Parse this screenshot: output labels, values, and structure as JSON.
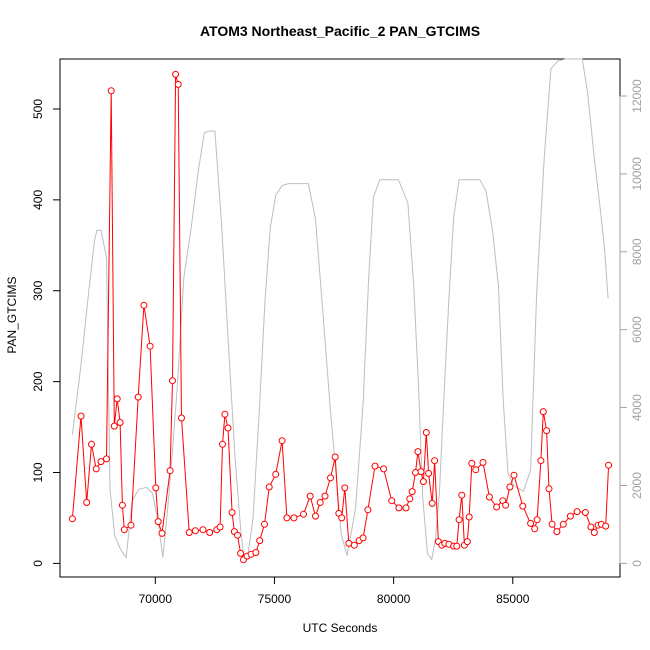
{
  "chart_data": {
    "type": "line",
    "title": "ATOM3 Northeast_Pacific_2 PAN_GTCIMS",
    "xlabel": "UTC Seconds",
    "ylabel": "PAN_GTCIMS",
    "xlim": [
      66000,
      89500
    ],
    "ylim": [
      -15,
      555
    ],
    "y2lim": [
      -350,
      12950
    ],
    "x_ticks": [
      70000,
      75000,
      80000,
      85000
    ],
    "y_ticks": [
      0,
      100,
      200,
      300,
      400,
      500
    ],
    "y2_ticks": [
      0,
      2000,
      4000,
      6000,
      8000,
      10000,
      12000
    ],
    "colors": {
      "primary": "#ff0000",
      "secondary": "#bebebe",
      "axis": "#000000",
      "right_axis": "#a0a0a0"
    },
    "grid": false,
    "series": [
      {
        "axis": "left",
        "style": "line+points",
        "x": [
          66520,
          66880,
          67120,
          67320,
          67520,
          67720,
          67950,
          68150,
          68280,
          68400,
          68520,
          68620,
          68700,
          68980,
          69280,
          69520,
          69780,
          70020,
          70120,
          70280,
          70620,
          70720,
          70850,
          70960,
          71100,
          71420,
          71680,
          72000,
          72280,
          72580,
          72720,
          72820,
          72920,
          73050,
          73220,
          73320,
          73450,
          73580,
          73700,
          73850,
          74020,
          74220,
          74380,
          74580,
          74780,
          75050,
          75320,
          75520,
          75820,
          76220,
          76500,
          76720,
          76920,
          77120,
          77350,
          77550,
          77700,
          77820,
          77950,
          78120,
          78350,
          78550,
          78720,
          78920,
          79220,
          79580,
          79920,
          80220,
          80520,
          80680,
          80780,
          80920,
          81020,
          81150,
          81250,
          81370,
          81470,
          81620,
          81720,
          81880,
          82020,
          82150,
          82320,
          82520,
          82650,
          82750,
          82860,
          82970,
          83090,
          83170,
          83280,
          83450,
          83750,
          84020,
          84320,
          84580,
          84700,
          84880,
          85050,
          85420,
          85750,
          85920,
          86020,
          86180,
          86280,
          86420,
          86520,
          86650,
          86850,
          87120,
          87420,
          87700,
          88050,
          88280,
          88420,
          88580,
          88720,
          88900,
          89020
        ],
        "y": [
          49,
          162,
          67,
          131,
          104,
          112,
          115,
          520,
          151,
          181,
          155,
          64,
          37,
          42,
          183,
          284,
          239,
          83,
          46,
          33,
          102,
          201,
          538,
          527,
          160,
          34,
          36,
          37,
          34,
          37,
          40,
          131,
          164,
          149,
          56,
          35,
          31,
          11,
          4,
          8,
          10,
          12,
          25,
          43,
          84,
          98,
          135,
          50,
          50,
          54,
          74,
          52,
          67,
          74,
          94,
          117,
          55,
          50,
          83,
          22,
          20,
          25,
          28,
          59,
          107,
          104,
          69,
          61,
          61,
          71,
          79,
          100,
          123,
          101,
          90,
          144,
          99,
          66,
          113,
          24,
          20,
          22,
          21,
          19,
          19,
          48,
          75,
          20,
          24,
          51,
          110,
          103,
          111,
          73,
          62,
          69,
          64,
          84,
          97,
          63,
          44,
          38,
          48,
          113,
          167,
          146,
          82,
          43,
          35,
          43,
          52,
          57,
          56,
          40,
          34,
          42,
          43,
          41,
          108
        ]
      },
      {
        "axis": "right",
        "style": "line",
        "x": [
          66520,
          66880,
          67200,
          67450,
          67550,
          67720,
          67950,
          68100,
          68300,
          68550,
          68780,
          69020,
          69300,
          69620,
          69880,
          70120,
          70320,
          70520,
          70720,
          70920,
          71200,
          71500,
          71800,
          72050,
          72250,
          72500,
          72780,
          73050,
          73350,
          73580,
          73720,
          73880,
          74100,
          74380,
          74600,
          74820,
          75050,
          75320,
          75580,
          75820,
          76150,
          76420,
          76720,
          77050,
          77350,
          77600,
          77800,
          78050,
          78400,
          78720,
          78950,
          79150,
          79420,
          79700,
          79920,
          80200,
          80600,
          80850,
          81050,
          81220,
          81420,
          81600,
          81750,
          81920,
          82080,
          82320,
          82520,
          82750,
          82900,
          83080,
          83300,
          83620,
          83880,
          84150,
          84400,
          84600,
          84800,
          85050,
          85450,
          85750,
          86000,
          86320,
          86600,
          86900,
          87220,
          87520,
          87700,
          87920,
          88150,
          88420,
          88680,
          88850,
          89000
        ],
        "y": [
          3300,
          5100,
          6950,
          8300,
          8550,
          8550,
          7850,
          1900,
          700,
          350,
          150,
          1600,
          1900,
          1950,
          1800,
          1050,
          150,
          1400,
          2900,
          4500,
          7350,
          8600,
          10050,
          11050,
          11100,
          11100,
          8700,
          5800,
          2700,
          900,
          100,
          200,
          1150,
          4100,
          6700,
          8600,
          9450,
          9700,
          9750,
          9750,
          9750,
          9750,
          8850,
          6300,
          3900,
          2200,
          750,
          200,
          1400,
          4100,
          7300,
          9400,
          9850,
          9850,
          9850,
          9850,
          9250,
          7050,
          4500,
          1700,
          250,
          100,
          600,
          1800,
          3900,
          6800,
          8900,
          9850,
          9850,
          9850,
          9850,
          9850,
          9550,
          8550,
          7100,
          4200,
          2300,
          2000,
          1850,
          2400,
          6900,
          10400,
          12700,
          12900,
          12950,
          12950,
          12950,
          12950,
          12050,
          10400,
          9050,
          8100,
          6800
        ]
      }
    ]
  }
}
